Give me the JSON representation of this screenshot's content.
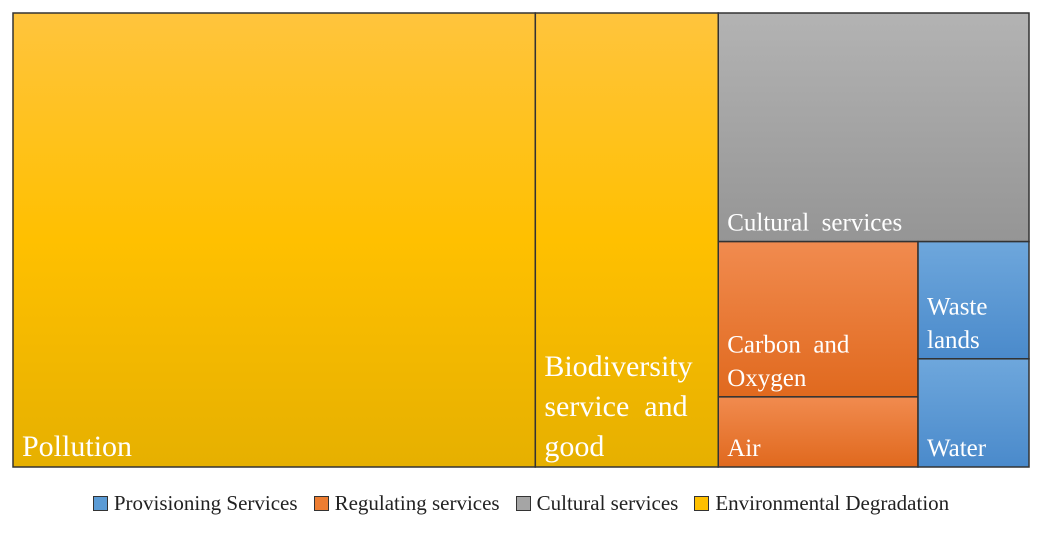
{
  "chart_data": {
    "type": "treemap",
    "title": "",
    "groups": [
      {
        "name": "Environmental Degradation",
        "color": "#FFC000",
        "items": [
          {
            "label": "Pollution",
            "value": 237
          },
          {
            "label": "Biodiversity service and good",
            "value": 83
          }
        ]
      },
      {
        "name": "Cultural services",
        "color": "#A5A5A5",
        "items": [
          {
            "label": "Cultural services",
            "value": 71
          }
        ]
      },
      {
        "name": "Regulating services",
        "color": "#ED7D31",
        "items": [
          {
            "label": "Carbon and Oxygen",
            "value": 31
          },
          {
            "label": "Air",
            "value": 14
          }
        ]
      },
      {
        "name": "Provisioning Services",
        "color": "#5B9BD5",
        "items": [
          {
            "label": "Waste lands",
            "value": 13
          },
          {
            "label": "Water",
            "value": 12
          }
        ]
      }
    ],
    "legend": {
      "position": "bottom",
      "entries": [
        {
          "label": "Provisioning Services",
          "color": "#5B9BD5"
        },
        {
          "label": "Regulating services",
          "color": "#ED7D31"
        },
        {
          "label": "Cultural services",
          "color": "#A5A5A5"
        },
        {
          "label": "Environmental Degradation",
          "color": "#FFC000"
        }
      ]
    }
  }
}
